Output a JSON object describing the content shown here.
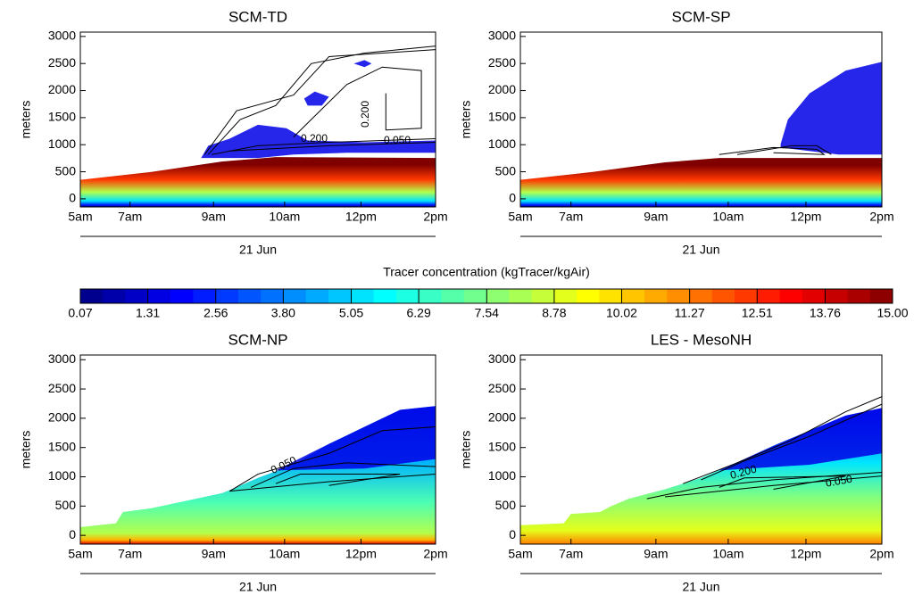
{
  "chart_data": [
    {
      "type": "contour",
      "title": "SCM-TD",
      "ylabel": "meters",
      "ylim": [
        -150,
        3080
      ],
      "yticks": [
        0,
        500,
        1000,
        1500,
        2000,
        2500,
        3000
      ],
      "xtick_labels": [
        "5am",
        "7am",
        "9am",
        "10am",
        "12pm",
        "2pm"
      ],
      "xlabel": "21 Jun",
      "contour_labels": [
        "0.200",
        "0.200",
        "0.050"
      ]
    },
    {
      "type": "contour",
      "title": "SCM-SP",
      "ylabel": "meters",
      "ylim": [
        -150,
        3080
      ],
      "yticks": [
        0,
        500,
        1000,
        1500,
        2000,
        2500,
        3000
      ],
      "xtick_labels": [
        "5am",
        "7am",
        "9am",
        "10am",
        "12pm",
        "2pm"
      ],
      "xlabel": "21 Jun",
      "contour_labels": []
    },
    {
      "type": "contour",
      "title": "SCM-NP",
      "ylabel": "meters",
      "ylim": [
        -150,
        3080
      ],
      "yticks": [
        0,
        500,
        1000,
        1500,
        2000,
        2500,
        3000
      ],
      "xtick_labels": [
        "5am",
        "7am",
        "9am",
        "10am",
        "12pm",
        "2pm"
      ],
      "xlabel": "21 Jun",
      "contour_labels": [
        "0.050"
      ]
    },
    {
      "type": "contour",
      "title": "LES - MesoNH",
      "ylabel": "meters",
      "ylim": [
        -150,
        3080
      ],
      "yticks": [
        0,
        500,
        1000,
        1500,
        2000,
        2500,
        3000
      ],
      "xtick_labels": [
        "5am",
        "7am",
        "9am",
        "10am",
        "12pm",
        "2pm"
      ],
      "xlabel": "21 Jun",
      "contour_labels": [
        "0.200",
        "0.050"
      ]
    },
    {
      "type": "colorbar",
      "title": "Tracer concentration (kgTracer/kgAir)",
      "clim": [
        0.07,
        15
      ],
      "ticks": [
        0.07,
        1.31,
        2.56,
        {
          "value": 3.8,
          "label": "3.80"
        },
        5.05,
        6.29,
        7.54,
        8.78,
        10.02,
        11.27,
        12.51,
        13.76,
        {
          "value": 15,
          "label": "15.00"
        }
      ]
    }
  ]
}
